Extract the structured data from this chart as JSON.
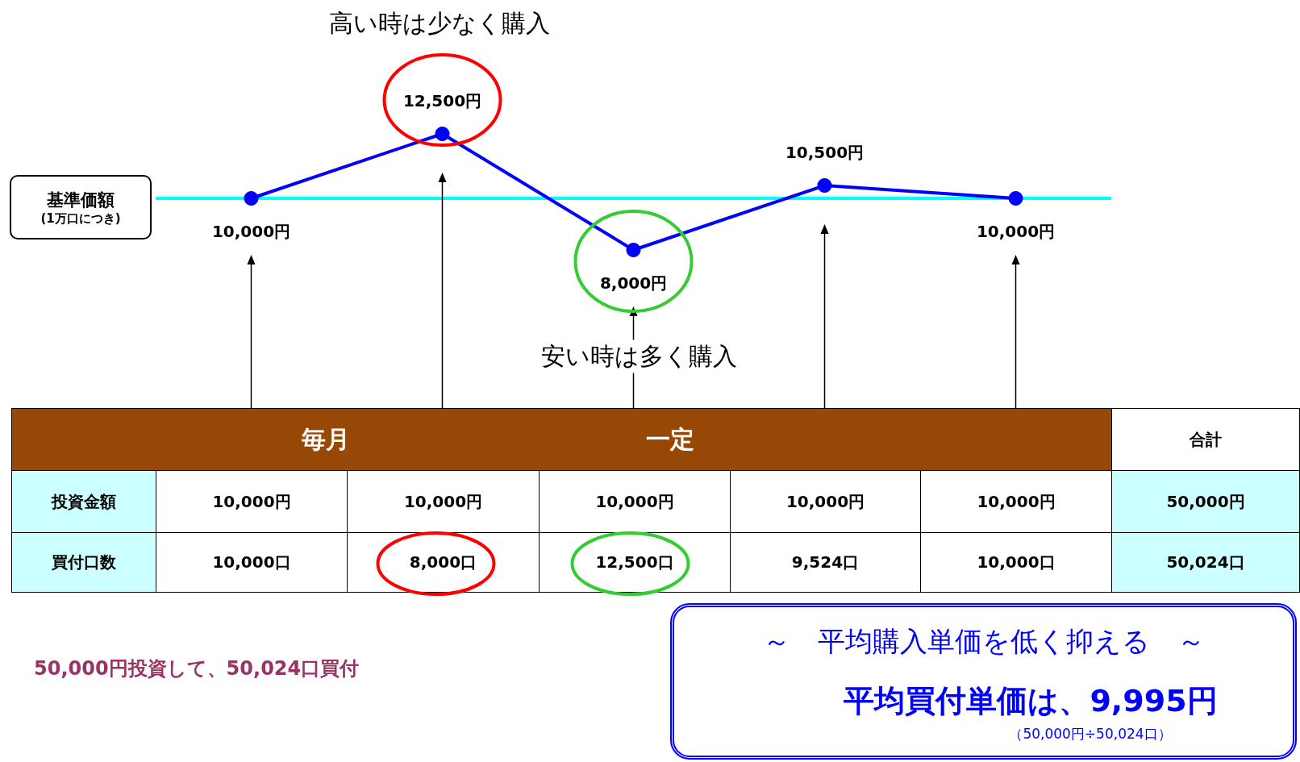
{
  "chart_data": [
    {
      "type": "line",
      "categories": [
        null,
        null,
        null,
        null,
        null
      ],
      "series": [
        {
          "color": "#0000ff",
          "values": [
            10000,
            12500,
            8000,
            10500,
            10000
          ],
          "value_labels": [
            "10,000円",
            "12,500円",
            "8,000円",
            "10,500円",
            "10,000円"
          ]
        }
      ],
      "marker": "circle",
      "ref_lines": [
        {
          "axis": "y",
          "value": 10000,
          "label": "基準価額\n(1万口につき)",
          "color": "#00ffff"
        }
      ],
      "annotations": [
        "高い時は少なく購入",
        "安い時は多く購入"
      ]
    },
    {
      "type": "other",
      "annotations": [
        "毎月",
        "一定",
        "合計",
        "投資金額",
        "10,000円",
        "10,000円",
        "10,000円",
        "10,000円",
        "10,000円",
        "50,000円",
        "買付口数",
        "10,000口",
        "8,000口",
        "12,500口",
        "9,524口",
        "10,000口",
        "50,024口",
        "50,000円投資して、50,024口買付",
        "～　平均購入単価を低く抑える　～",
        "平均買付単価は、9,995円",
        "（50,000円÷50,024口）"
      ]
    }
  ]
}
